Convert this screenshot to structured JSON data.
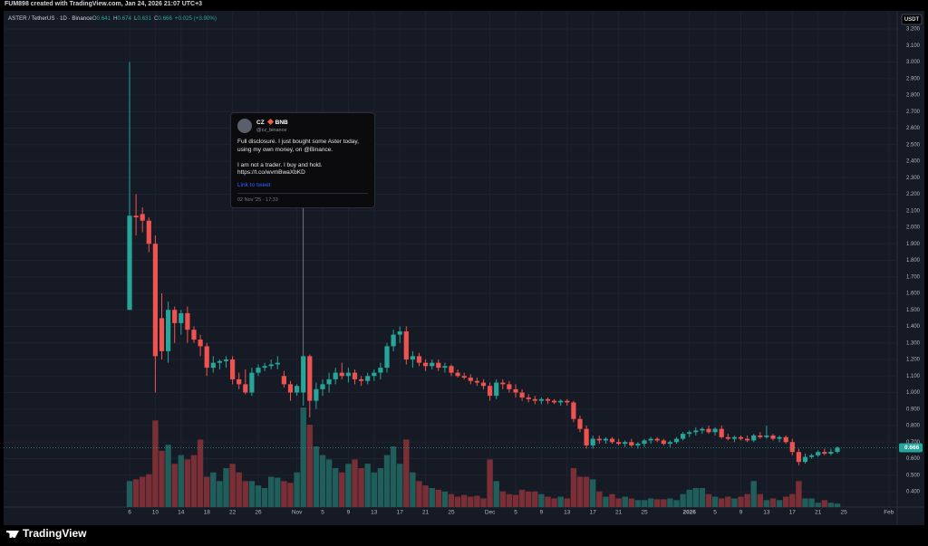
{
  "chart_data": {
    "type": "candlestick",
    "header": "FUM898 created with TradingView.com, Jan 24, 2026 21:07 UTC+3",
    "brand": "TradingView",
    "legend": {
      "symbol": "ASTER / TetherUS · 1D · Binance",
      "fields": [
        {
          "label": "O",
          "value": 0.641
        },
        {
          "label": "H",
          "value": 0.674
        },
        {
          "label": "L",
          "value": 0.631
        },
        {
          "label": "C",
          "value": 0.666
        }
      ],
      "change": "+0.025 (+3.90%)"
    },
    "currency": "USDT",
    "annotation": {
      "name": "CZ",
      "badge": "BNB",
      "handle": "@cz_binance",
      "lines": [
        "Full disclosure. I just bought some Aster today,",
        "using my own money, on @Binance.",
        "I am not a trader. I buy and hold.",
        "https://t.co/wvmBwaXbKD"
      ],
      "link": "Link to tweet",
      "date": "02 Nov '25 · 17:33"
    },
    "categories": [
      "6",
      null,
      null,
      null,
      "10",
      null,
      null,
      null,
      "14",
      null,
      null,
      null,
      "18",
      null,
      null,
      null,
      "22",
      null,
      null,
      null,
      "26",
      null,
      null,
      null,
      null,
      null,
      "Nov",
      null,
      null,
      null,
      "5",
      null,
      null,
      null,
      "9",
      null,
      null,
      null,
      "13",
      null,
      null,
      null,
      "17",
      null,
      null,
      null,
      "21",
      null,
      null,
      null,
      "25",
      null,
      null,
      null,
      null,
      null,
      "Dec",
      null,
      null,
      null,
      "5",
      null,
      null,
      null,
      "9",
      null,
      null,
      null,
      "13",
      null,
      null,
      null,
      "17",
      null,
      null,
      null,
      "21",
      null,
      null,
      null,
      "25",
      null,
      null,
      null,
      null,
      null,
      null,
      "2026",
      null,
      null,
      null,
      "5",
      null,
      null,
      null,
      "9",
      null,
      null,
      null,
      "13",
      null,
      null,
      null,
      "17",
      null,
      null,
      null,
      "21",
      null,
      null,
      null,
      "25",
      null,
      null,
      null,
      null,
      null,
      null,
      "Feb"
    ],
    "open": [
      1.5,
      2.07,
      2.08,
      2.04,
      1.9,
      1.45,
      1.25,
      1.5,
      1.42,
      1.48,
      1.38,
      1.32,
      1.28,
      1.15,
      1.18,
      1.19,
      1.2,
      1.08,
      1.05,
      1.0,
      1.12,
      1.15,
      1.16,
      1.17,
      1.1,
      1.05,
      1.0,
      1.0,
      1.22,
      0.95,
      1.02,
      1.05,
      1.08,
      1.12,
      1.1,
      1.12,
      1.08,
      1.07,
      1.1,
      1.12,
      1.15,
      1.28,
      1.35,
      1.37,
      1.2,
      1.22,
      1.18,
      1.16,
      1.18,
      1.15,
      1.16,
      1.12,
      1.1,
      1.09,
      1.07,
      1.06,
      1.04,
      0.98,
      1.06,
      1.05,
      1.02,
      1.0,
      0.97,
      0.96,
      0.95,
      0.96,
      0.95,
      0.94,
      0.95,
      0.94,
      0.84,
      0.78,
      0.68,
      0.72,
      0.71,
      0.72,
      0.7,
      0.69,
      0.7,
      0.68,
      0.69,
      0.71,
      0.72,
      0.71,
      0.69,
      0.7,
      0.72,
      0.75,
      0.76,
      0.77,
      0.78,
      0.76,
      0.78,
      0.73,
      0.72,
      0.73,
      0.72,
      0.71,
      0.74,
      0.73,
      0.74,
      0.72,
      0.73,
      0.7,
      0.64,
      0.58,
      0.61,
      0.62,
      0.64,
      0.63,
      0.641,
      null,
      null,
      null,
      null,
      null,
      null,
      null,
      null
    ],
    "high": [
      3.0,
      2.2,
      2.12,
      2.06,
      1.95,
      1.6,
      1.55,
      1.52,
      1.5,
      1.52,
      1.4,
      1.35,
      1.3,
      1.22,
      1.2,
      1.22,
      1.22,
      1.12,
      1.14,
      1.15,
      1.17,
      1.18,
      1.2,
      1.22,
      1.13,
      1.07,
      1.05,
      1.22,
      1.23,
      1.06,
      1.08,
      1.12,
      1.15,
      1.18,
      1.15,
      1.14,
      1.1,
      1.12,
      1.14,
      1.18,
      1.3,
      1.38,
      1.4,
      1.4,
      1.25,
      1.24,
      1.2,
      1.2,
      1.2,
      1.18,
      1.17,
      1.14,
      1.12,
      1.11,
      1.09,
      1.08,
      1.06,
      1.08,
      1.08,
      1.07,
      1.05,
      1.02,
      0.99,
      0.98,
      0.97,
      0.97,
      0.96,
      0.96,
      0.96,
      0.95,
      0.86,
      0.8,
      0.74,
      0.74,
      0.73,
      0.73,
      0.72,
      0.71,
      0.72,
      0.7,
      0.72,
      0.73,
      0.73,
      0.72,
      0.71,
      0.73,
      0.76,
      0.77,
      0.79,
      0.79,
      0.8,
      0.79,
      0.8,
      0.75,
      0.74,
      0.74,
      0.74,
      0.75,
      0.76,
      0.8,
      0.75,
      0.74,
      0.74,
      0.72,
      0.66,
      0.63,
      0.63,
      0.65,
      0.66,
      0.66,
      0.674,
      null,
      null,
      null,
      null,
      null,
      null,
      null,
      null
    ],
    "low": [
      1.5,
      1.95,
      1.97,
      1.85,
      1.0,
      1.2,
      1.18,
      1.3,
      1.35,
      1.3,
      1.3,
      1.22,
      1.1,
      1.12,
      1.14,
      1.15,
      1.05,
      1.02,
      0.99,
      0.98,
      1.1,
      1.13,
      1.14,
      1.14,
      1.03,
      0.95,
      0.98,
      0.92,
      0.85,
      0.9,
      0.98,
      1.0,
      1.05,
      1.08,
      1.06,
      1.05,
      1.04,
      1.05,
      1.07,
      1.08,
      1.12,
      1.25,
      1.3,
      1.17,
      1.15,
      1.16,
      1.13,
      1.14,
      1.13,
      1.12,
      1.1,
      1.09,
      1.08,
      1.05,
      1.04,
      1.02,
      0.95,
      0.96,
      1.02,
      1.0,
      0.97,
      0.95,
      0.94,
      0.93,
      0.93,
      0.93,
      0.93,
      0.92,
      0.92,
      0.82,
      0.76,
      0.66,
      0.66,
      0.69,
      0.69,
      0.69,
      0.68,
      0.67,
      0.67,
      0.66,
      0.67,
      0.69,
      0.7,
      0.68,
      0.67,
      0.69,
      0.71,
      0.73,
      0.74,
      0.75,
      0.75,
      0.74,
      0.72,
      0.71,
      0.7,
      0.71,
      0.7,
      0.7,
      0.72,
      0.72,
      0.71,
      0.7,
      0.69,
      0.62,
      0.56,
      0.57,
      0.6,
      0.61,
      0.62,
      0.62,
      0.631,
      null,
      null,
      null,
      null,
      null,
      null,
      null,
      null
    ],
    "close": [
      2.07,
      2.06,
      2.04,
      1.9,
      1.22,
      1.25,
      1.5,
      1.42,
      1.48,
      1.38,
      1.32,
      1.28,
      1.15,
      1.18,
      1.19,
      1.2,
      1.08,
      1.05,
      1.0,
      1.12,
      1.15,
      1.16,
      1.17,
      1.18,
      1.05,
      1.0,
      1.04,
      1.22,
      0.95,
      1.02,
      1.05,
      1.08,
      1.12,
      1.1,
      1.12,
      1.08,
      1.07,
      1.1,
      1.12,
      1.15,
      1.28,
      1.35,
      1.37,
      1.2,
      1.22,
      1.18,
      1.16,
      1.18,
      1.15,
      1.16,
      1.12,
      1.1,
      1.09,
      1.07,
      1.06,
      1.04,
      0.98,
      1.06,
      1.05,
      1.02,
      1.0,
      0.97,
      0.96,
      0.95,
      0.96,
      0.95,
      0.94,
      0.95,
      0.94,
      0.84,
      0.78,
      0.68,
      0.72,
      0.71,
      0.72,
      0.7,
      0.69,
      0.7,
      0.68,
      0.69,
      0.71,
      0.72,
      0.71,
      0.69,
      0.7,
      0.72,
      0.75,
      0.76,
      0.77,
      0.78,
      0.76,
      0.78,
      0.73,
      0.72,
      0.73,
      0.72,
      0.71,
      0.74,
      0.73,
      0.74,
      0.72,
      0.73,
      0.7,
      0.64,
      0.58,
      0.61,
      0.62,
      0.64,
      0.63,
      0.641,
      0.666,
      null,
      null,
      null,
      null,
      null,
      null,
      null,
      null
    ],
    "volume": [
      30,
      32,
      35,
      38,
      100,
      65,
      72,
      50,
      60,
      55,
      60,
      78,
      35,
      40,
      30,
      45,
      50,
      40,
      30,
      30,
      25,
      22,
      35,
      34,
      30,
      28,
      40,
      115,
      95,
      70,
      60,
      55,
      45,
      40,
      50,
      55,
      45,
      50,
      40,
      45,
      60,
      70,
      50,
      78,
      40,
      30,
      25,
      22,
      20,
      18,
      15,
      12,
      14,
      12,
      13,
      10,
      55,
      30,
      18,
      15,
      14,
      20,
      18,
      18,
      15,
      12,
      10,
      12,
      10,
      45,
      35,
      35,
      32,
      18,
      12,
      15,
      10,
      12,
      10,
      8,
      8,
      10,
      9,
      9,
      10,
      8,
      15,
      20,
      22,
      22,
      15,
      12,
      10,
      12,
      10,
      12,
      15,
      30,
      15,
      8,
      10,
      8,
      12,
      15,
      30,
      10,
      10,
      5,
      8,
      5,
      4,
      null,
      null,
      null,
      null,
      null,
      null,
      null,
      null
    ],
    "up_color": "#26a69a",
    "down_color": "#ef5350",
    "up_volume_color": "#1f5e5a",
    "down_volume_color": "#7a2f36",
    "ylim": [
      0.4,
      3.2
    ],
    "yticks": [
      {
        "value": 0.4,
        "label": "0.400"
      },
      {
        "value": 0.5,
        "label": "0.500"
      },
      {
        "value": 0.6,
        "label": "0.600"
      },
      {
        "value": 0.7,
        "label": "0.700"
      },
      {
        "value": 0.8,
        "label": "0.800"
      },
      {
        "value": 0.9,
        "label": "0.900"
      },
      {
        "value": 1.0,
        "label": "1.000"
      },
      {
        "value": 1.1,
        "label": "1.100"
      },
      {
        "value": 1.2,
        "label": "1.200"
      },
      {
        "value": 1.3,
        "label": "1.300"
      },
      {
        "value": 1.4,
        "label": "1.400"
      },
      {
        "value": 1.5,
        "label": "1.500"
      },
      {
        "value": 1.6,
        "label": "1.600"
      },
      {
        "value": 1.7,
        "label": "1.700"
      },
      {
        "value": 1.8,
        "label": "1.800"
      },
      {
        "value": 1.9,
        "label": "1.900"
      },
      {
        "value": 2.0,
        "label": "2.000"
      },
      {
        "value": 2.1,
        "label": "2.100"
      },
      {
        "value": 2.2,
        "label": "2.200"
      },
      {
        "value": 2.3,
        "label": "2.300"
      },
      {
        "value": 2.4,
        "label": "2.400"
      },
      {
        "value": 2.5,
        "label": "2.500"
      },
      {
        "value": 2.6,
        "label": "2.600"
      },
      {
        "value": 2.7,
        "label": "2.700"
      },
      {
        "value": 2.8,
        "label": "2.800"
      },
      {
        "value": 2.9,
        "label": "2.900"
      },
      {
        "value": 3.0,
        "label": "3.000"
      },
      {
        "value": 3.1,
        "label": "3.100"
      },
      {
        "value": 3.2,
        "label": "3.200"
      }
    ],
    "grid": true
  }
}
